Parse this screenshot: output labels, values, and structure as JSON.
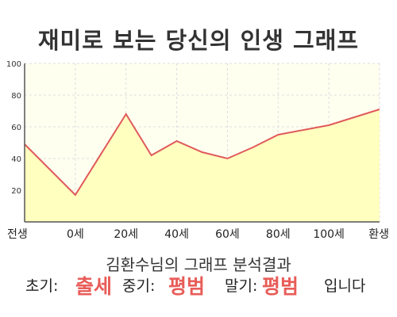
{
  "title": "재미로 보는 당신의 인생 그래프",
  "chart_data": {
    "type": "area",
    "x": [
      -20,
      0,
      20,
      30,
      40,
      50,
      60,
      70,
      80,
      90,
      100,
      110,
      120
    ],
    "values": [
      49,
      17,
      68,
      42,
      51,
      44,
      40,
      47,
      55,
      58,
      61,
      66,
      71
    ],
    "x_tick_labels": [
      {
        "x": -20,
        "label": "전생"
      },
      {
        "x": 0,
        "label": "0세"
      },
      {
        "x": 20,
        "label": "20세"
      },
      {
        "x": 40,
        "label": "40세"
      },
      {
        "x": 60,
        "label": "60세"
      },
      {
        "x": 80,
        "label": "80세"
      },
      {
        "x": 100,
        "label": "100세"
      },
      {
        "x": 120,
        "label": "환생"
      }
    ],
    "y_ticks": [
      20,
      40,
      60,
      80,
      100
    ],
    "ylim": [
      0,
      100
    ],
    "xlim": [
      -20,
      120
    ],
    "grid": true,
    "line_color": "#e05a5a",
    "fill_color": "#ffffc0",
    "plot_bg": "#fffff0",
    "grid_color": "#dddddd"
  },
  "summary": "김환수님의 그래프 분석결과",
  "verdict": {
    "early_label": "초기:",
    "early_value": "출세",
    "mid_label": "중기:",
    "mid_value": "평범",
    "late_label": "말기:",
    "late_value": "평범",
    "ending": "입니다",
    "highlight_color": "#e85c58"
  }
}
